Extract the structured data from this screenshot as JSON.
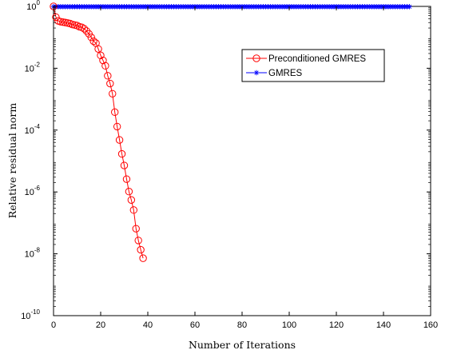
{
  "chart_data": {
    "type": "line",
    "xlabel": "Number of Iterations",
    "ylabel": "Relative residual norm",
    "xlim": [
      0,
      160
    ],
    "ylim": [
      1e-10,
      1
    ],
    "yscale": "log",
    "x_ticks": [
      "0",
      "20",
      "40",
      "60",
      "80",
      "100",
      "120",
      "140",
      "160"
    ],
    "x_tick_values": [
      0,
      20,
      40,
      60,
      80,
      100,
      120,
      140,
      160
    ],
    "y_ticks": [
      {
        "value": 1,
        "base": "10",
        "exp": "0"
      },
      {
        "value": 0.01,
        "base": "10",
        "exp": "-2"
      },
      {
        "value": 0.0001,
        "base": "10",
        "exp": "-4"
      },
      {
        "value": 1e-06,
        "base": "10",
        "exp": "-6"
      },
      {
        "value": 1e-08,
        "base": "10",
        "exp": "-8"
      },
      {
        "value": 1e-10,
        "base": "10",
        "exp": "-10"
      }
    ],
    "grid": false,
    "legend_position": "top-right",
    "series": [
      {
        "name": "Preconditioned GMRES",
        "color": "#ff0000",
        "marker": "circle",
        "x": [
          0,
          1,
          2,
          3,
          4,
          5,
          6,
          7,
          8,
          9,
          10,
          11,
          12,
          13,
          14,
          15,
          16,
          17,
          18,
          19,
          20,
          21,
          22,
          23,
          24,
          25,
          26,
          27,
          28,
          29,
          30,
          31,
          32,
          33,
          34,
          35,
          36,
          37,
          38
        ],
        "y": [
          1,
          0.45,
          0.34,
          0.32,
          0.31,
          0.3,
          0.29,
          0.28,
          0.26,
          0.25,
          0.24,
          0.22,
          0.21,
          0.19,
          0.16,
          0.13,
          0.1,
          0.075,
          0.065,
          0.042,
          0.026,
          0.018,
          0.012,
          0.0057,
          0.0032,
          0.0015,
          0.00038,
          0.00013,
          4.8e-05,
          1.7e-05,
          7.2e-06,
          2.6e-06,
          1.03e-06,
          5.5e-07,
          2.6e-07,
          6.5e-08,
          2.7e-08,
          1.35e-08,
          7.2e-09
        ]
      },
      {
        "name": "GMRES",
        "color": "#0000ff",
        "marker": "asterisk",
        "x_range": [
          0,
          151
        ],
        "y_constant": 0.98
      }
    ]
  }
}
